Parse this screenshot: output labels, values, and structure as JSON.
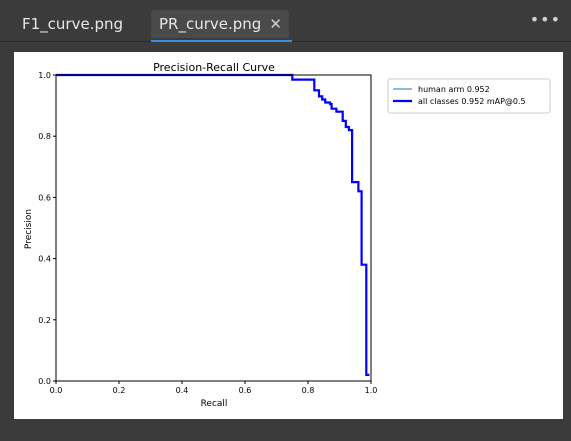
{
  "tabs": [
    {
      "label": "F1_curve.png",
      "active": false
    },
    {
      "label": "PR_curve.png",
      "active": true
    }
  ],
  "tab_close_glyph": "✕",
  "more_glyph": "•••",
  "accent_color": "#3a8ee6",
  "chart_data": {
    "type": "line",
    "title": "Precision-Recall Curve",
    "xlabel": "Recall",
    "ylabel": "Precision",
    "xlim": [
      0.0,
      1.0
    ],
    "ylim": [
      0.0,
      1.0
    ],
    "xticks": [
      "0.0",
      "0.2",
      "0.4",
      "0.6",
      "0.8",
      "1.0"
    ],
    "yticks": [
      "0.0",
      "0.2",
      "0.4",
      "0.6",
      "0.8",
      "1.0"
    ],
    "grid": false,
    "legend": "outside-right",
    "series": [
      {
        "name": "human arm 0.952",
        "color": "#1f77b4",
        "x": [
          0.0,
          0.75,
          0.75,
          0.82,
          0.82,
          0.835,
          0.835,
          0.845,
          0.845,
          0.855,
          0.855,
          0.87,
          0.87,
          0.875,
          0.875,
          0.89,
          0.89,
          0.91,
          0.91,
          0.92,
          0.92,
          0.93,
          0.93,
          0.94,
          0.94,
          0.96,
          0.96,
          0.97,
          0.97,
          0.985,
          0.985,
          0.995
        ],
        "y": [
          1.0,
          1.0,
          0.985,
          0.985,
          0.95,
          0.95,
          0.93,
          0.93,
          0.92,
          0.92,
          0.91,
          0.91,
          0.905,
          0.905,
          0.89,
          0.89,
          0.88,
          0.88,
          0.85,
          0.85,
          0.83,
          0.83,
          0.82,
          0.82,
          0.65,
          0.65,
          0.62,
          0.62,
          0.38,
          0.38,
          0.02,
          0.02
        ]
      },
      {
        "name": "all classes 0.952 mAP@0.5",
        "color": "#0000ff",
        "x": [
          0.0,
          0.75,
          0.75,
          0.82,
          0.82,
          0.835,
          0.835,
          0.845,
          0.845,
          0.855,
          0.855,
          0.87,
          0.87,
          0.875,
          0.875,
          0.89,
          0.89,
          0.91,
          0.91,
          0.92,
          0.92,
          0.93,
          0.93,
          0.94,
          0.94,
          0.96,
          0.96,
          0.97,
          0.97,
          0.985,
          0.985,
          0.995
        ],
        "y": [
          1.0,
          1.0,
          0.985,
          0.985,
          0.95,
          0.95,
          0.93,
          0.93,
          0.92,
          0.92,
          0.91,
          0.91,
          0.905,
          0.905,
          0.89,
          0.89,
          0.88,
          0.88,
          0.85,
          0.85,
          0.83,
          0.83,
          0.82,
          0.82,
          0.65,
          0.65,
          0.62,
          0.62,
          0.38,
          0.38,
          0.02,
          0.02
        ]
      }
    ]
  }
}
